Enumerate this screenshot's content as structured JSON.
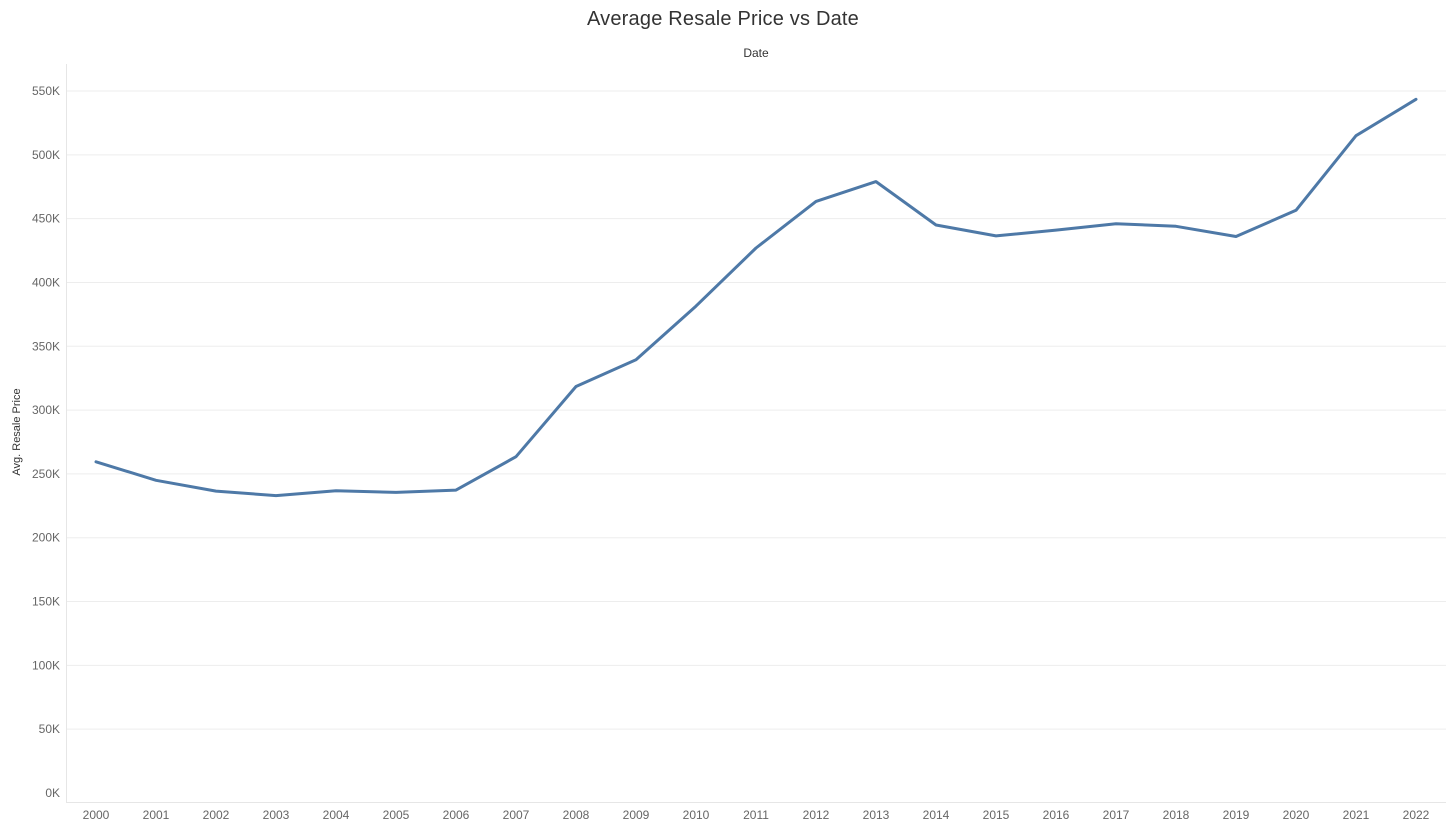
{
  "chart_data": {
    "type": "line",
    "title": "Average Resale Price vs Date",
    "x_header": "Date",
    "xlabel": "",
    "ylabel": "Avg. Resale Price",
    "x": [
      "2000",
      "2001",
      "2002",
      "2003",
      "2004",
      "2005",
      "2006",
      "2007",
      "2008",
      "2009",
      "2010",
      "2011",
      "2012",
      "2013",
      "2014",
      "2015",
      "2016",
      "2017",
      "2018",
      "2019",
      "2020",
      "2021",
      "2022"
    ],
    "series": [
      {
        "values": [
          259500,
          245000,
          236500,
          233000,
          236800,
          235500,
          237300,
          263500,
          318500,
          339500,
          381500,
          427000,
          463500,
          479000,
          445000,
          436500,
          441000,
          446000,
          444000,
          436000,
          456500,
          515000,
          543500
        ],
        "color": "#4e79a7"
      }
    ],
    "ylim": [
      0,
      550000
    ],
    "y_ticks": [
      0,
      50000,
      100000,
      150000,
      200000,
      250000,
      300000,
      350000,
      400000,
      450000,
      500000,
      550000
    ],
    "y_tick_labels": [
      "0K",
      "50K",
      "100K",
      "150K",
      "200K",
      "250K",
      "300K",
      "350K",
      "400K",
      "450K",
      "500K",
      "550K"
    ],
    "grid": true,
    "legend": "none"
  }
}
